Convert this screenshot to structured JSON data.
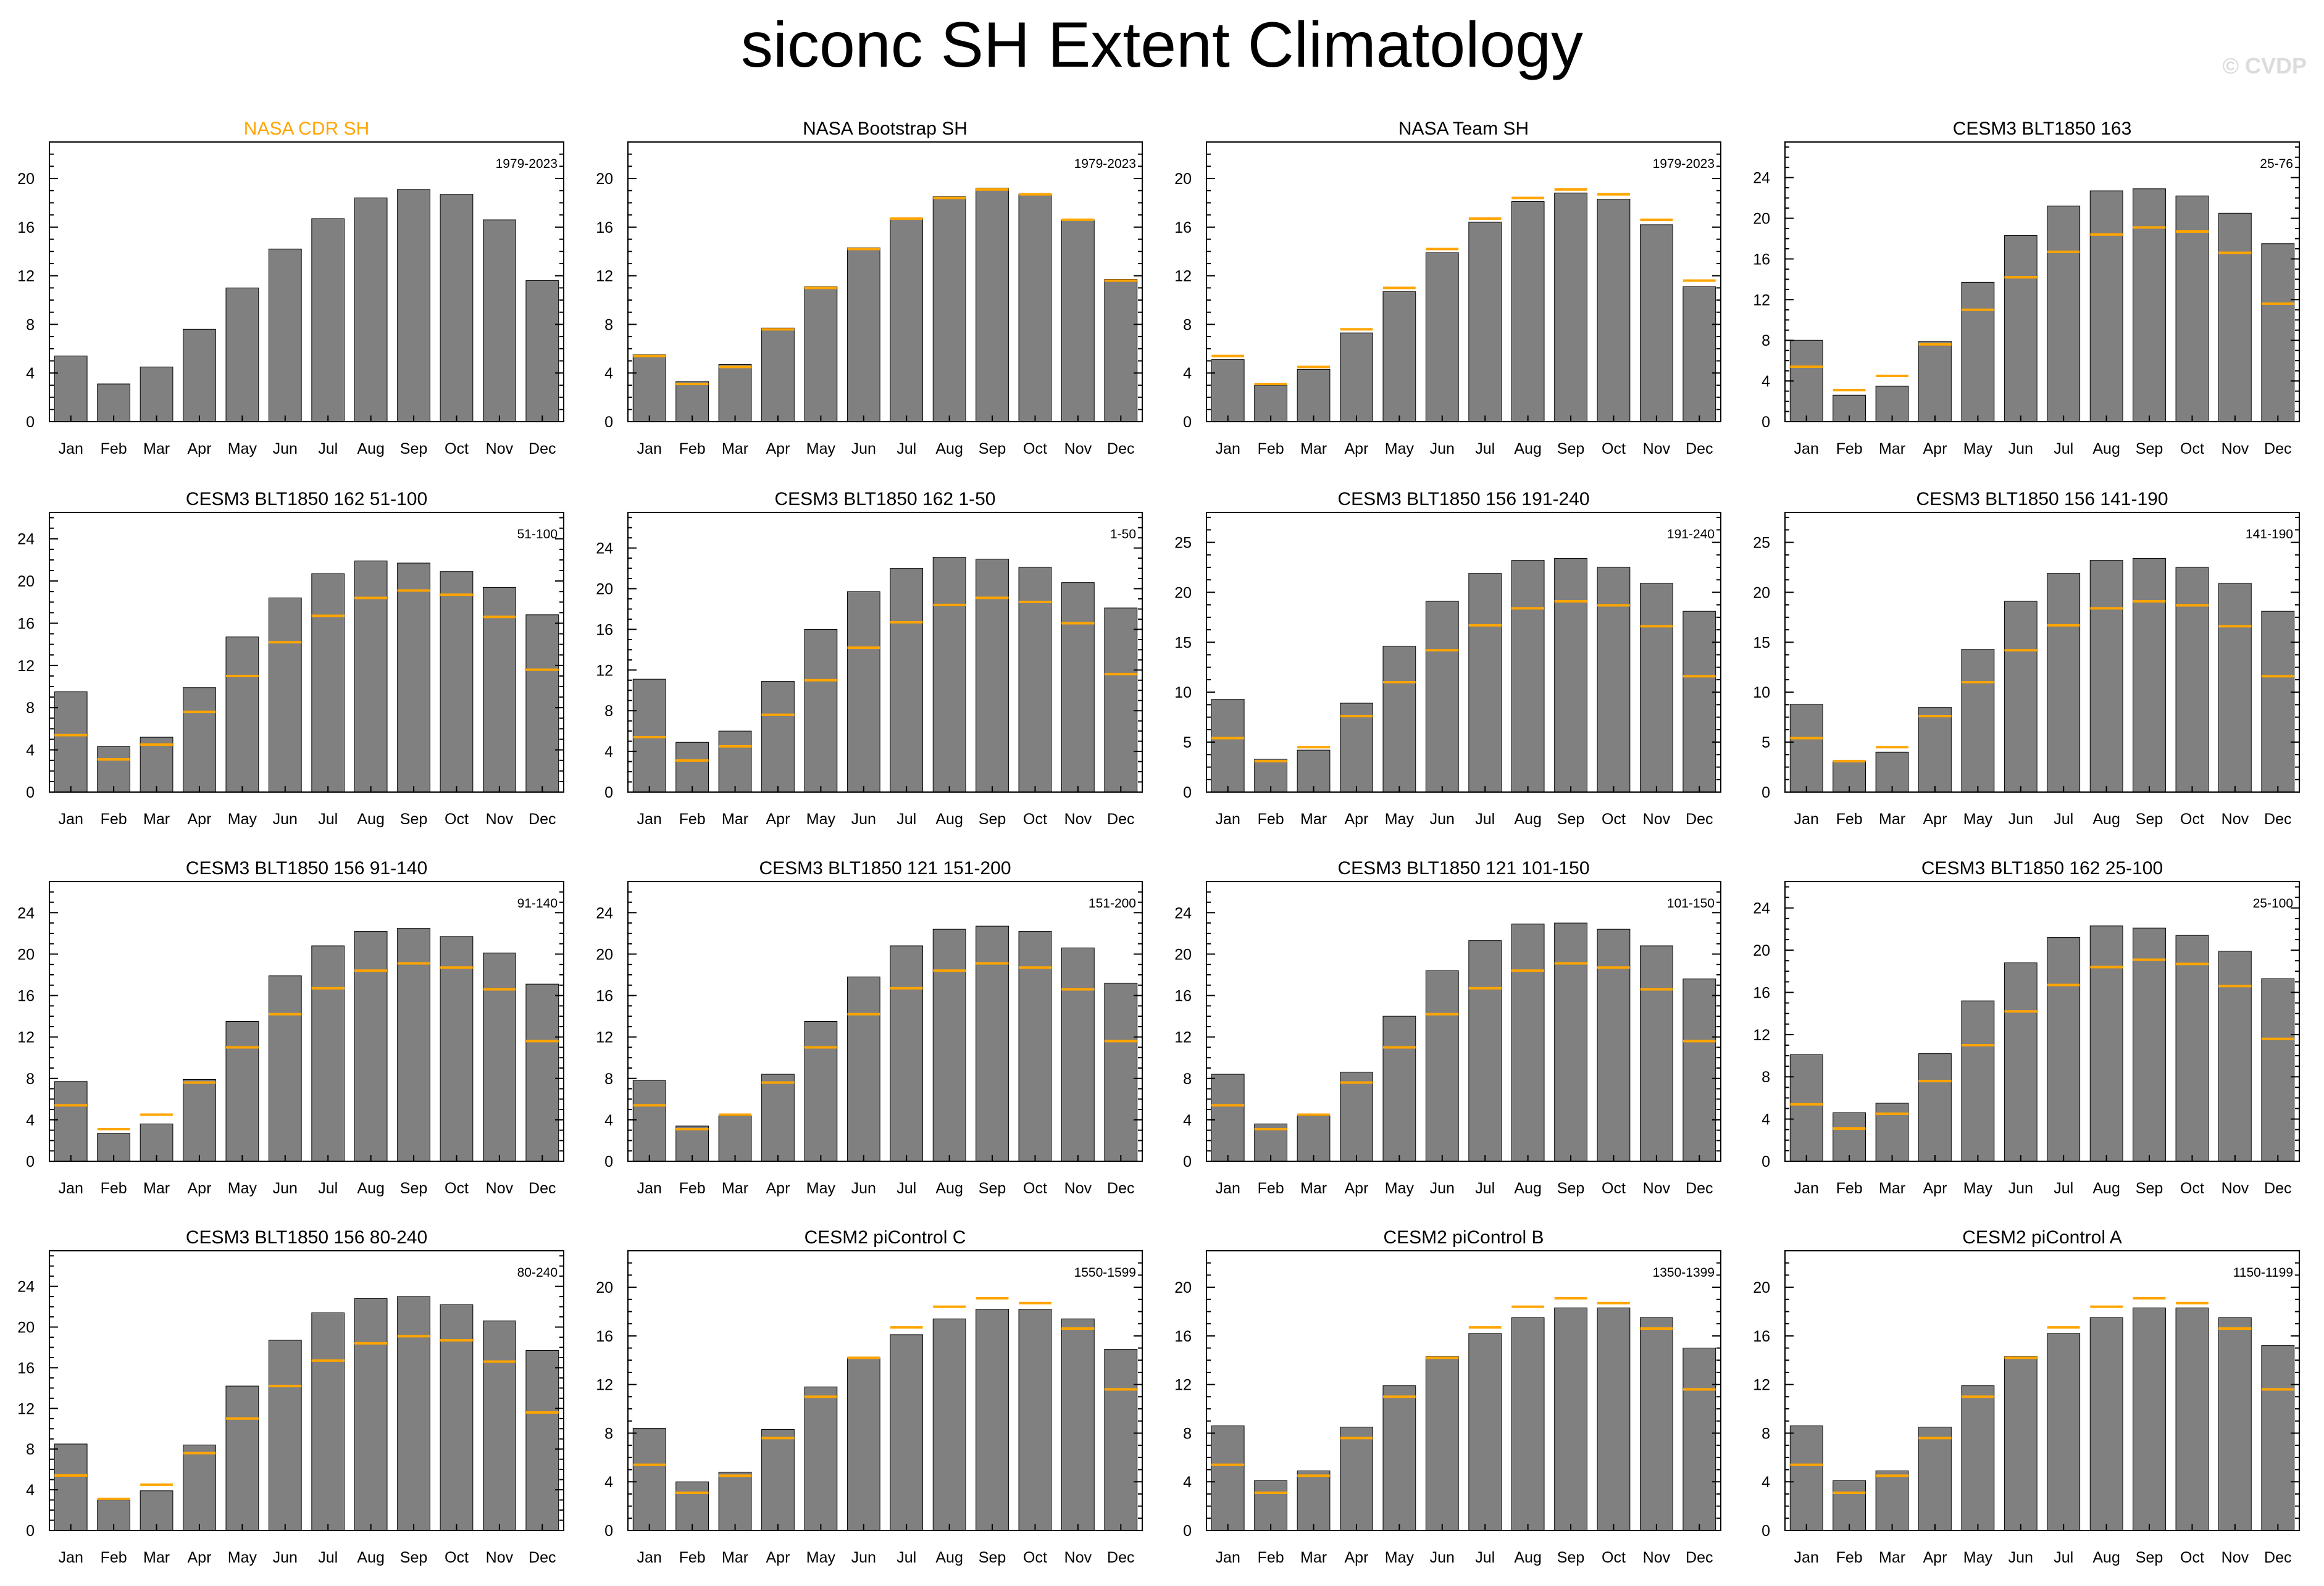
{
  "title": "siconc SH Extent Climatology",
  "watermark": "© CVDP",
  "colors": {
    "bar": "#808080",
    "reference": "#ffa500",
    "highlight_title": "#ffa500",
    "axis": "#000000"
  },
  "chart_data": [
    {
      "type": "bar",
      "title": "NASA CDR SH",
      "title_color": "#ffa500",
      "period": "1979-2023",
      "categories": [
        "Jan",
        "Feb",
        "Mar",
        "Apr",
        "May",
        "Jun",
        "Jul",
        "Aug",
        "Sep",
        "Oct",
        "Nov",
        "Dec"
      ],
      "ylim": [
        0,
        23
      ],
      "yticks": [
        0,
        4,
        8,
        12,
        16,
        20
      ],
      "values": [
        5.4,
        3.1,
        4.5,
        7.6,
        11.0,
        14.2,
        16.7,
        18.4,
        19.1,
        18.7,
        16.6,
        11.6
      ]
    },
    {
      "type": "bar",
      "title": "NASA Bootstrap SH",
      "period": "1979-2023",
      "categories": [
        "Jan",
        "Feb",
        "Mar",
        "Apr",
        "May",
        "Jun",
        "Jul",
        "Aug",
        "Sep",
        "Oct",
        "Nov",
        "Dec"
      ],
      "ylim": [
        0,
        23
      ],
      "yticks": [
        0,
        4,
        8,
        12,
        16,
        20
      ],
      "values": [
        5.5,
        3.3,
        4.7,
        7.7,
        11.1,
        14.3,
        16.7,
        18.5,
        19.2,
        18.7,
        16.6,
        11.7
      ],
      "reference": [
        5.4,
        3.1,
        4.5,
        7.6,
        11.0,
        14.2,
        16.7,
        18.4,
        19.1,
        18.7,
        16.6,
        11.6
      ]
    },
    {
      "type": "bar",
      "title": "NASA Team SH",
      "period": "1979-2023",
      "categories": [
        "Jan",
        "Feb",
        "Mar",
        "Apr",
        "May",
        "Jun",
        "Jul",
        "Aug",
        "Sep",
        "Oct",
        "Nov",
        "Dec"
      ],
      "ylim": [
        0,
        23
      ],
      "yticks": [
        0,
        4,
        8,
        12,
        16,
        20
      ],
      "values": [
        5.1,
        3.0,
        4.3,
        7.3,
        10.7,
        13.9,
        16.4,
        18.1,
        18.8,
        18.3,
        16.2,
        11.1
      ],
      "reference": [
        5.4,
        3.1,
        4.5,
        7.6,
        11.0,
        14.2,
        16.7,
        18.4,
        19.1,
        18.7,
        16.6,
        11.6
      ]
    },
    {
      "type": "bar",
      "title": "CESM3 BLT1850 163",
      "period": "25-76",
      "categories": [
        "Jan",
        "Feb",
        "Mar",
        "Apr",
        "May",
        "Jun",
        "Jul",
        "Aug",
        "Sep",
        "Oct",
        "Nov",
        "Dec"
      ],
      "ylim": [
        0,
        27.5
      ],
      "yticks": [
        0,
        4,
        8,
        12,
        16,
        20,
        24
      ],
      "values": [
        8.0,
        2.6,
        3.5,
        7.9,
        13.7,
        18.3,
        21.2,
        22.7,
        22.9,
        22.2,
        20.5,
        17.5
      ],
      "reference": [
        5.4,
        3.1,
        4.5,
        7.6,
        11.0,
        14.2,
        16.7,
        18.4,
        19.1,
        18.7,
        16.6,
        11.6
      ]
    },
    {
      "type": "bar",
      "title": "CESM3 BLT1850 162 51-100",
      "period": "51-100",
      "categories": [
        "Jan",
        "Feb",
        "Mar",
        "Apr",
        "May",
        "Jun",
        "Jul",
        "Aug",
        "Sep",
        "Oct",
        "Nov",
        "Dec"
      ],
      "ylim": [
        0,
        26.5
      ],
      "yticks": [
        0,
        4,
        8,
        12,
        16,
        20,
        24
      ],
      "values": [
        9.5,
        4.3,
        5.2,
        9.9,
        14.7,
        18.4,
        20.7,
        21.9,
        21.7,
        20.9,
        19.4,
        16.8
      ],
      "reference": [
        5.4,
        3.1,
        4.5,
        7.6,
        11.0,
        14.2,
        16.7,
        18.4,
        19.1,
        18.7,
        16.6,
        11.6
      ]
    },
    {
      "type": "bar",
      "title": "CESM3 BLT1850 162 1-50",
      "period": "1-50",
      "categories": [
        "Jan",
        "Feb",
        "Mar",
        "Apr",
        "May",
        "Jun",
        "Jul",
        "Aug",
        "Sep",
        "Oct",
        "Nov",
        "Dec"
      ],
      "ylim": [
        0,
        27.5
      ],
      "yticks": [
        0,
        4,
        8,
        12,
        16,
        20,
        24
      ],
      "values": [
        11.1,
        4.9,
        6.0,
        10.9,
        16.0,
        19.7,
        22.0,
        23.1,
        22.9,
        22.1,
        20.6,
        18.1
      ],
      "reference": [
        5.4,
        3.1,
        4.5,
        7.6,
        11.0,
        14.2,
        16.7,
        18.4,
        19.1,
        18.7,
        16.6,
        11.6
      ]
    },
    {
      "type": "bar",
      "title": "CESM3 BLT1850 156 191-240",
      "period": "191-240",
      "categories": [
        "Jan",
        "Feb",
        "Mar",
        "Apr",
        "May",
        "Jun",
        "Jul",
        "Aug",
        "Sep",
        "Oct",
        "Nov",
        "Dec"
      ],
      "ylim": [
        0,
        28
      ],
      "yticks": [
        0,
        5,
        10,
        15,
        20,
        25
      ],
      "values": [
        9.3,
        3.3,
        4.2,
        8.9,
        14.6,
        19.1,
        21.9,
        23.2,
        23.4,
        22.5,
        20.9,
        18.1
      ],
      "reference": [
        5.4,
        3.1,
        4.5,
        7.6,
        11.0,
        14.2,
        16.7,
        18.4,
        19.1,
        18.7,
        16.6,
        11.6
      ]
    },
    {
      "type": "bar",
      "title": "CESM3 BLT1850 156 141-190",
      "period": "141-190",
      "categories": [
        "Jan",
        "Feb",
        "Mar",
        "Apr",
        "May",
        "Jun",
        "Jul",
        "Aug",
        "Sep",
        "Oct",
        "Nov",
        "Dec"
      ],
      "ylim": [
        0,
        28
      ],
      "yticks": [
        0,
        5,
        10,
        15,
        20,
        25
      ],
      "values": [
        8.8,
        3.1,
        4.0,
        8.5,
        14.3,
        19.1,
        21.9,
        23.2,
        23.4,
        22.5,
        20.9,
        18.1
      ],
      "reference": [
        5.4,
        3.1,
        4.5,
        7.6,
        11.0,
        14.2,
        16.7,
        18.4,
        19.1,
        18.7,
        16.6,
        11.6
      ]
    },
    {
      "type": "bar",
      "title": "CESM3 BLT1850 156 91-140",
      "period": "91-140",
      "categories": [
        "Jan",
        "Feb",
        "Mar",
        "Apr",
        "May",
        "Jun",
        "Jul",
        "Aug",
        "Sep",
        "Oct",
        "Nov",
        "Dec"
      ],
      "ylim": [
        0,
        27
      ],
      "yticks": [
        0,
        4,
        8,
        12,
        16,
        20,
        24
      ],
      "values": [
        7.7,
        2.7,
        3.6,
        7.9,
        13.5,
        17.9,
        20.8,
        22.2,
        22.5,
        21.7,
        20.1,
        17.1
      ],
      "reference": [
        5.4,
        3.1,
        4.5,
        7.6,
        11.0,
        14.2,
        16.7,
        18.4,
        19.1,
        18.7,
        16.6,
        11.6
      ]
    },
    {
      "type": "bar",
      "title": "CESM3 BLT1850 121 151-200",
      "period": "151-200",
      "categories": [
        "Jan",
        "Feb",
        "Mar",
        "Apr",
        "May",
        "Jun",
        "Jul",
        "Aug",
        "Sep",
        "Oct",
        "Nov",
        "Dec"
      ],
      "ylim": [
        0,
        27
      ],
      "yticks": [
        0,
        4,
        8,
        12,
        16,
        20,
        24
      ],
      "values": [
        7.8,
        3.4,
        4.4,
        8.4,
        13.5,
        17.8,
        20.8,
        22.4,
        22.7,
        22.2,
        20.6,
        17.2
      ],
      "reference": [
        5.4,
        3.1,
        4.5,
        7.6,
        11.0,
        14.2,
        16.7,
        18.4,
        19.1,
        18.7,
        16.6,
        11.6
      ]
    },
    {
      "type": "bar",
      "title": "CESM3 BLT1850 121 101-150",
      "period": "101-150",
      "categories": [
        "Jan",
        "Feb",
        "Mar",
        "Apr",
        "May",
        "Jun",
        "Jul",
        "Aug",
        "Sep",
        "Oct",
        "Nov",
        "Dec"
      ],
      "ylim": [
        0,
        27
      ],
      "yticks": [
        0,
        4,
        8,
        12,
        16,
        20,
        24
      ],
      "values": [
        8.4,
        3.6,
        4.4,
        8.6,
        14.0,
        18.4,
        21.3,
        22.9,
        23.0,
        22.4,
        20.8,
        17.6
      ],
      "reference": [
        5.4,
        3.1,
        4.5,
        7.6,
        11.0,
        14.2,
        16.7,
        18.4,
        19.1,
        18.7,
        16.6,
        11.6
      ]
    },
    {
      "type": "bar",
      "title": "CESM3 BLT1850 162 25-100",
      "period": "25-100",
      "categories": [
        "Jan",
        "Feb",
        "Mar",
        "Apr",
        "May",
        "Jun",
        "Jul",
        "Aug",
        "Sep",
        "Oct",
        "Nov",
        "Dec"
      ],
      "ylim": [
        0,
        26.5
      ],
      "yticks": [
        0,
        4,
        8,
        12,
        16,
        20,
        24
      ],
      "values": [
        10.1,
        4.6,
        5.5,
        10.2,
        15.2,
        18.8,
        21.2,
        22.3,
        22.1,
        21.4,
        19.9,
        17.3
      ],
      "reference": [
        5.4,
        3.1,
        4.5,
        7.6,
        11.0,
        14.2,
        16.7,
        18.4,
        19.1,
        18.7,
        16.6,
        11.6
      ]
    },
    {
      "type": "bar",
      "title": "CESM3 BLT1850 156 80-240",
      "period": "80-240",
      "categories": [
        "Jan",
        "Feb",
        "Mar",
        "Apr",
        "May",
        "Jun",
        "Jul",
        "Aug",
        "Sep",
        "Oct",
        "Nov",
        "Dec"
      ],
      "ylim": [
        0,
        27.5
      ],
      "yticks": [
        0,
        4,
        8,
        12,
        16,
        20,
        24
      ],
      "values": [
        8.5,
        3.0,
        3.9,
        8.4,
        14.2,
        18.7,
        21.4,
        22.8,
        23.0,
        22.2,
        20.6,
        17.7
      ],
      "reference": [
        5.4,
        3.1,
        4.5,
        7.6,
        11.0,
        14.2,
        16.7,
        18.4,
        19.1,
        18.7,
        16.6,
        11.6
      ]
    },
    {
      "type": "bar",
      "title": "CESM2 piControl C",
      "period": "1550-1599",
      "categories": [
        "Jan",
        "Feb",
        "Mar",
        "Apr",
        "May",
        "Jun",
        "Jul",
        "Aug",
        "Sep",
        "Oct",
        "Nov",
        "Dec"
      ],
      "ylim": [
        0,
        23
      ],
      "yticks": [
        0,
        4,
        8,
        12,
        16,
        20
      ],
      "values": [
        8.4,
        4.0,
        4.8,
        8.3,
        11.8,
        14.2,
        16.1,
        17.4,
        18.2,
        18.2,
        17.4,
        14.9
      ],
      "reference": [
        5.4,
        3.1,
        4.5,
        7.6,
        11.0,
        14.2,
        16.7,
        18.4,
        19.1,
        18.7,
        16.6,
        11.6
      ]
    },
    {
      "type": "bar",
      "title": "CESM2 piControl B",
      "period": "1350-1399",
      "categories": [
        "Jan",
        "Feb",
        "Mar",
        "Apr",
        "May",
        "Jun",
        "Jul",
        "Aug",
        "Sep",
        "Oct",
        "Nov",
        "Dec"
      ],
      "ylim": [
        0,
        23
      ],
      "yticks": [
        0,
        4,
        8,
        12,
        16,
        20
      ],
      "values": [
        8.6,
        4.1,
        4.9,
        8.5,
        11.9,
        14.3,
        16.2,
        17.5,
        18.3,
        18.3,
        17.5,
        15.0
      ],
      "reference": [
        5.4,
        3.1,
        4.5,
        7.6,
        11.0,
        14.2,
        16.7,
        18.4,
        19.1,
        18.7,
        16.6,
        11.6
      ]
    },
    {
      "type": "bar",
      "title": "CESM2 piControl A",
      "period": "1150-1199",
      "categories": [
        "Jan",
        "Feb",
        "Mar",
        "Apr",
        "May",
        "Jun",
        "Jul",
        "Aug",
        "Sep",
        "Oct",
        "Nov",
        "Dec"
      ],
      "ylim": [
        0,
        23
      ],
      "yticks": [
        0,
        4,
        8,
        12,
        16,
        20
      ],
      "values": [
        8.6,
        4.1,
        4.9,
        8.5,
        11.9,
        14.3,
        16.2,
        17.5,
        18.3,
        18.3,
        17.5,
        15.2
      ],
      "reference": [
        5.4,
        3.1,
        4.5,
        7.6,
        11.0,
        14.2,
        16.7,
        18.4,
        19.1,
        18.7,
        16.6,
        11.6
      ]
    }
  ]
}
